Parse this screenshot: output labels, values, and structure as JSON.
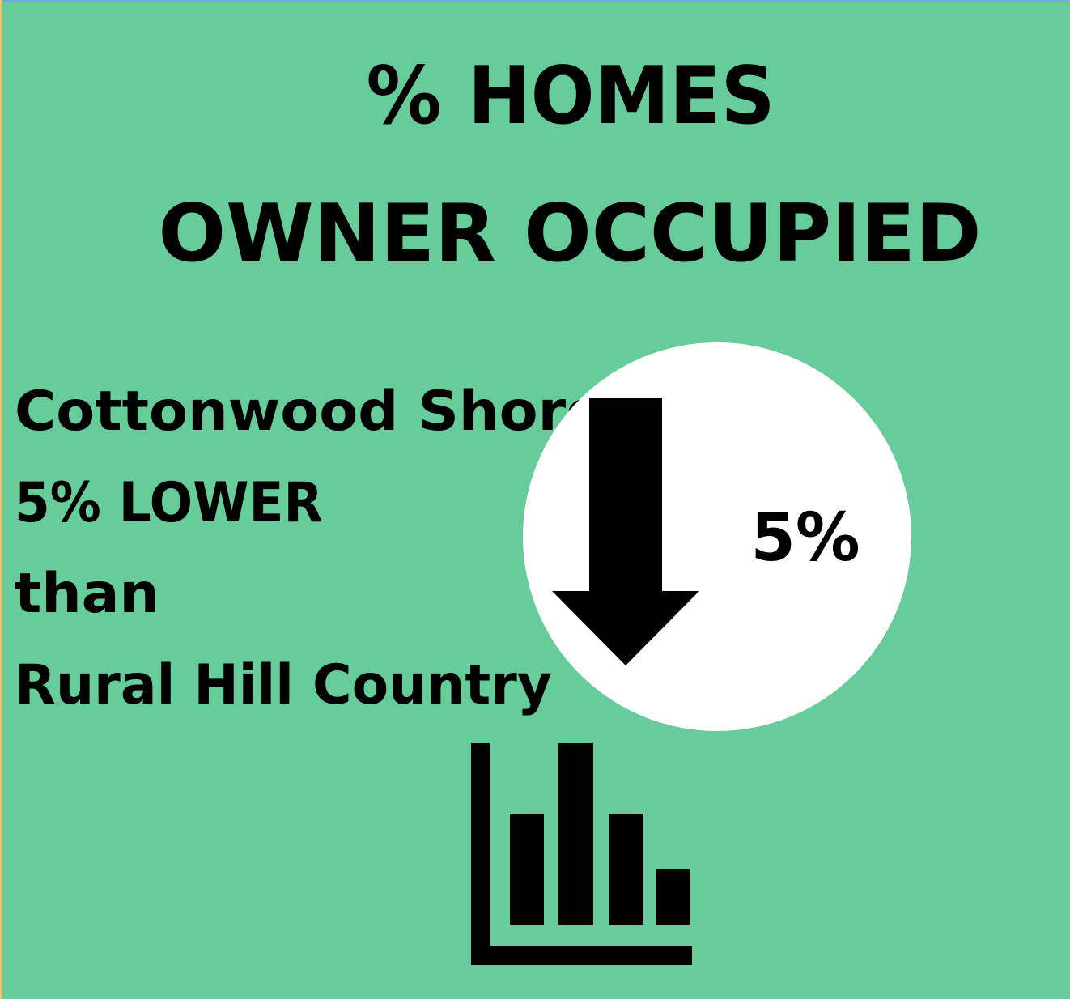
{
  "title": {
    "lines": [
      "% HOMES",
      "OWNER OCCUPIED"
    ]
  },
  "body": {
    "lines": [
      "Cottonwood Shores",
      "5% LOWER",
      "than",
      "Rural Hill Country"
    ]
  },
  "badge": {
    "label": "5%"
  }
}
